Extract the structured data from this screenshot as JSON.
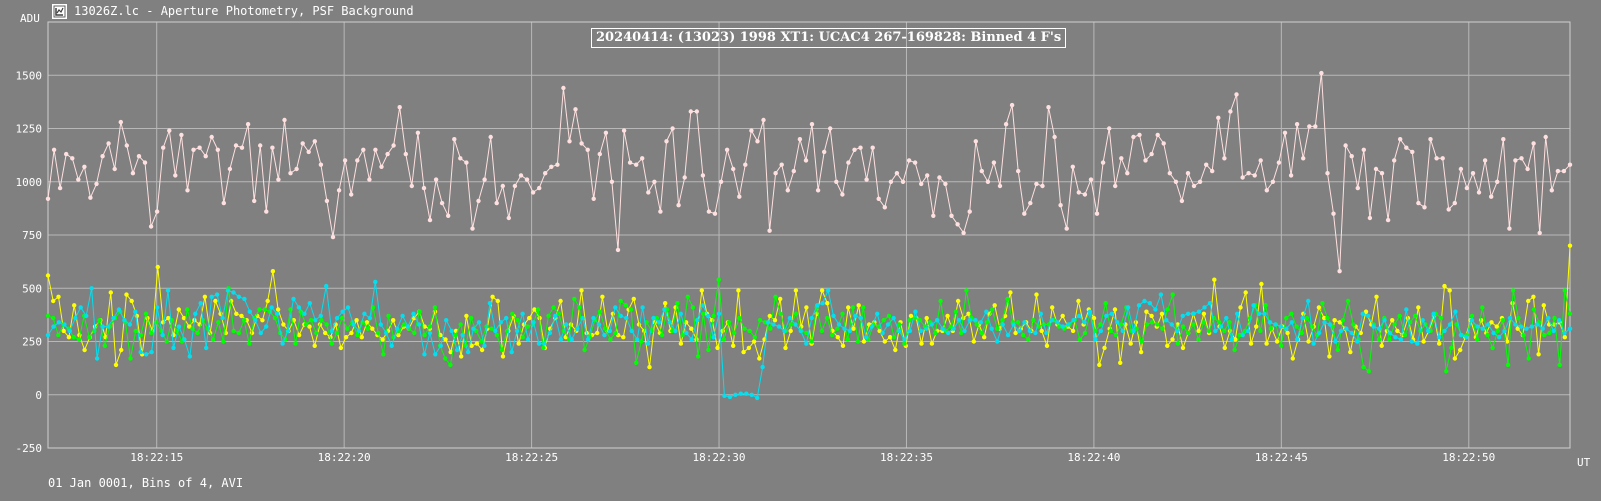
{
  "window": {
    "title": "13026Z.lc - Aperture Photometry, PSF Background",
    "icon": "lightcurve-app-icon"
  },
  "footer": "01 Jan 0001, Bins of 4, AVI",
  "chart_data": {
    "type": "line",
    "title": "20240414: (13023) 1998 XT1: UCAC4 267-169828: Binned 4 F's",
    "ylabel": "ADU",
    "xlabel": "UT",
    "ylim": [
      -250,
      1750
    ],
    "yticks": [
      -250,
      0,
      250,
      500,
      750,
      1000,
      1250,
      1500
    ],
    "xticks": [
      {
        "t": 15,
        "label": "18:22:15"
      },
      {
        "t": 20,
        "label": "18:22:20"
      },
      {
        "t": 25,
        "label": "18:22:25"
      },
      {
        "t": 30,
        "label": "18:22:30"
      },
      {
        "t": 35,
        "label": "18:22:35"
      },
      {
        "t": 40,
        "label": "18:22:40"
      },
      {
        "t": 45,
        "label": "18:22:45"
      },
      {
        "t": 50,
        "label": "18:22:50"
      }
    ],
    "xlim_seconds_after_18_22_00": [
      12.1,
      52.7
    ],
    "grid": true,
    "series": [
      {
        "color": "#ffe0e0",
        "values": [
          920,
          1150,
          970,
          1130,
          1110,
          1010,
          1070,
          925,
          990,
          1120,
          1180,
          1060,
          1280,
          1170,
          1040,
          1120,
          1090,
          790,
          860,
          1160,
          1240,
          1030,
          1220,
          960,
          1150,
          1160,
          1120,
          1210,
          1150,
          900,
          1060,
          1170,
          1160,
          1270,
          910,
          1170,
          860,
          1160,
          1010,
          1290,
          1040,
          1060,
          1180,
          1140,
          1190,
          1080,
          910,
          740,
          960,
          1100,
          940,
          1100,
          1150,
          1010,
          1150,
          1070,
          1130,
          1170,
          1350,
          1130,
          980,
          1230,
          970,
          820,
          1010,
          900,
          840,
          1200,
          1110,
          1090,
          780,
          910,
          1010,
          1210,
          900,
          980,
          830,
          980,
          1030,
          1010,
          950,
          970,
          1040,
          1070,
          1080,
          1440,
          1190,
          1340,
          1180,
          1150,
          920,
          1130,
          1230,
          1000,
          680,
          1240,
          1090,
          1080,
          1110,
          950,
          1000,
          860,
          1190,
          1250,
          890,
          1020,
          1330,
          1330,
          1030,
          860,
          850,
          1000,
          1150,
          1060,
          930,
          1080,
          1240,
          1190,
          1290,
          770,
          1040,
          1080,
          960,
          1050,
          1200,
          1100,
          1270,
          960,
          1140,
          1250,
          1000,
          940,
          1090,
          1150,
          1160,
          1010,
          1160,
          920,
          880,
          1000,
          1040,
          1000,
          1100,
          1090,
          990,
          1030,
          840,
          1020,
          990,
          840,
          800,
          760,
          860,
          1190,
          1050,
          1000,
          1090,
          980,
          1270,
          1360,
          1050,
          850,
          900,
          990,
          980,
          1350,
          1210,
          890,
          780,
          1070,
          950,
          940,
          1010,
          850,
          1090,
          1250,
          980,
          1110,
          1040,
          1210,
          1220,
          1100,
          1130,
          1220,
          1180,
          1040,
          1000,
          910,
          1040,
          980,
          1000,
          1080,
          1050,
          1300,
          1110,
          1330,
          1410,
          1020,
          1040,
          1030,
          1100,
          960,
          1000,
          1090,
          1230,
          1030,
          1270,
          1110,
          1260,
          1260,
          1510,
          1040,
          850,
          580,
          1170,
          1120,
          970,
          1150,
          830,
          1060,
          1040,
          820,
          1100,
          1200,
          1160,
          1140,
          900,
          880,
          1200,
          1110,
          1110,
          870,
          900,
          1060,
          970,
          1040,
          950,
          1100,
          930,
          1000,
          1200,
          780,
          1100,
          1110,
          1060,
          1180,
          760,
          1210,
          960,
          1050,
          1050,
          1080
        ]
      },
      {
        "color": "#ffff00",
        "values": [
          560,
          440,
          460,
          300,
          270,
          420,
          280,
          210,
          270,
          320,
          350,
          270,
          480,
          140,
          210,
          470,
          440,
          370,
          190,
          360,
          300,
          600,
          340,
          360,
          280,
          400,
          360,
          320,
          350,
          330,
          460,
          290,
          440,
          380,
          290,
          440,
          380,
          370,
          350,
          290,
          370,
          350,
          440,
          580,
          400,
          330,
          300,
          350,
          280,
          330,
          320,
          230,
          330,
          290,
          270,
          330,
          220,
          270,
          290,
          350,
          270,
          340,
          310,
          280,
          260,
          300,
          350,
          280,
          320,
          310,
          360,
          390,
          320,
          310,
          390,
          280,
          260,
          200,
          300,
          180,
          370,
          230,
          240,
          210,
          310,
          460,
          440,
          180,
          300,
          370,
          240,
          330,
          360,
          400,
          360,
          220,
          310,
          360,
          440,
          270,
          330,
          300,
          490,
          290,
          280,
          290,
          460,
          300,
          380,
          280,
          270,
          400,
          450,
          330,
          300,
          130,
          340,
          290,
          430,
          300,
          410,
          240,
          340,
          310,
          260,
          490,
          380,
          350,
          220,
          300,
          340,
          230,
          490,
          200,
          220,
          250,
          170,
          260,
          370,
          350,
          450,
          220,
          300,
          490,
          320,
          410,
          240,
          380,
          490,
          430,
          300,
          270,
          230,
          410,
          310,
          420,
          250,
          330,
          340,
          300,
          250,
          270,
          210,
          340,
          230,
          370,
          360,
          240,
          360,
          240,
          300,
          300,
          370,
          300,
          440,
          360,
          380,
          250,
          330,
          270,
          380,
          420,
          310,
          370,
          480,
          290,
          310,
          340,
          300,
          470,
          300,
          230,
          410,
          330,
          370,
          320,
          300,
          440,
          330,
          400,
          360,
          140,
          220,
          310,
          400,
          150,
          330,
          240,
          340,
          200,
          390,
          370,
          320,
          380,
          230,
          260,
          330,
          220,
          290,
          380,
          300,
          380,
          290,
          540,
          320,
          220,
          300,
          260,
          410,
          480,
          240,
          320,
          520,
          240,
          310,
          250,
          320,
          290,
          170,
          260,
          380,
          250,
          320,
          410,
          360,
          180,
          350,
          340,
          310,
          200,
          320,
          290,
          390,
          330,
          460,
          230,
          300,
          350,
          300,
          280,
          360,
          260,
          410,
          250,
          300,
          370,
          240,
          510,
          490,
          170,
          210,
          270,
          350,
          270,
          350,
          290,
          340,
          320,
          360,
          250,
          430,
          310,
          280,
          440,
          460,
          190,
          420,
          330,
          330,
          340,
          270,
          700
        ]
      },
      {
        "color": "#00ff00",
        "values": [
          370,
          360,
          280,
          330,
          310,
          270,
          260,
          370,
          270,
          300,
          350,
          230,
          320,
          360,
          390,
          340,
          170,
          300,
          280,
          380,
          290,
          340,
          300,
          250,
          350,
          300,
          250,
          400,
          310,
          290,
          350,
          310,
          260,
          340,
          250,
          500,
          300,
          290,
          350,
          240,
          360,
          400,
          400,
          390,
          360,
          290,
          260,
          400,
          240,
          390,
          330,
          350,
          290,
          350,
          330,
          240,
          290,
          360,
          310,
          340,
          280,
          340,
          310,
          410,
          290,
          190,
          370,
          270,
          300,
          330,
          310,
          290,
          390,
          280,
          320,
          410,
          230,
          170,
          140,
          280,
          330,
          230,
          360,
          300,
          250,
          320,
          310,
          280,
          210,
          300,
          380,
          350,
          270,
          320,
          330,
          400,
          220,
          370,
          410,
          380,
          300,
          260,
          450,
          410,
          210,
          270,
          350,
          390,
          310,
          260,
          290,
          440,
          420,
          400,
          150,
          250,
          340,
          300,
          360,
          280,
          400,
          300,
          430,
          280,
          460,
          410,
          180,
          380,
          210,
          370,
          540,
          260,
          340,
          290,
          360,
          310,
          300,
          270,
          350,
          340,
          310,
          460,
          380,
          300,
          330,
          380,
          300,
          290,
          250,
          410,
          300,
          360,
          280,
          310,
          380,
          260,
          410,
          250,
          410,
          260,
          330,
          320,
          350,
          370,
          270,
          330,
          240,
          350,
          360,
          350,
          320,
          340,
          290,
          440,
          300,
          320,
          390,
          290,
          490,
          360,
          330,
          290,
          340,
          400,
          310,
          350,
          450,
          340,
          340,
          280,
          260,
          350,
          320,
          330,
          330,
          350,
          320,
          310,
          330,
          350,
          260,
          290,
          380,
          300,
          330,
          430,
          300,
          280,
          330,
          410,
          300,
          310,
          250,
          330,
          340,
          330,
          310,
          400,
          470,
          240,
          320,
          290,
          330,
          260,
          340,
          300,
          360,
          340,
          300,
          340,
          210,
          280,
          300,
          360,
          420,
          300,
          420,
          310,
          330,
          230,
          360,
          380,
          320,
          290,
          360,
          320,
          280,
          430,
          360,
          320,
          210,
          350,
          440,
          330,
          260,
          130,
          110,
          330,
          260,
          360,
          260,
          330,
          370,
          280,
          340,
          370,
          300,
          330,
          300,
          380,
          360,
          110,
          220,
          330,
          280,
          280,
          370,
          260,
          410,
          280,
          220,
          300,
          350,
          140,
          490,
          360,
          280,
          170,
          400,
          340,
          280,
          290,
          360,
          140,
          490,
          380
        ]
      },
      {
        "color": "#00e0f0",
        "values": [
          280,
          320,
          340,
          330,
          300,
          360,
          410,
          370,
          500,
          170,
          320,
          320,
          360,
          400,
          350,
          330,
          390,
          200,
          190,
          200,
          410,
          280,
          490,
          220,
          320,
          260,
          180,
          380,
          430,
          220,
          460,
          470,
          360,
          490,
          480,
          460,
          450,
          390,
          350,
          290,
          320,
          410,
          380,
          240,
          300,
          450,
          410,
          380,
          430,
          350,
          370,
          510,
          300,
          360,
          390,
          410,
          330,
          300,
          380,
          360,
          530,
          330,
          290,
          230,
          310,
          370,
          320,
          380,
          330,
          190,
          290,
          190,
          230,
          350,
          300,
          210,
          280,
          200,
          310,
          340,
          230,
          430,
          300,
          340,
          360,
          200,
          300,
          380,
          260,
          340,
          240,
          240,
          290,
          370,
          260,
          330,
          260,
          310,
          360,
          260,
          360,
          330,
          280,
          300,
          410,
          370,
          360,
          300,
          260,
          410,
          240,
          360,
          340,
          400,
          340,
          300,
          380,
          290,
          260,
          350,
          420,
          370,
          270,
          380,
          -5,
          -10,
          0,
          5,
          5,
          0,
          -15,
          130,
          340,
          330,
          320,
          300,
          360,
          330,
          300,
          240,
          360,
          420,
          430,
          490,
          370,
          330,
          310,
          300,
          370,
          360,
          270,
          320,
          380,
          290,
          330,
          360,
          300,
          260,
          300,
          390,
          300,
          310,
          330,
          350,
          310,
          290,
          310,
          350,
          300,
          350,
          350,
          340,
          390,
          310,
          250,
          330,
          280,
          330,
          300,
          340,
          300,
          290,
          380,
          290,
          350,
          340,
          320,
          330,
          350,
          370,
          340,
          390,
          260,
          300,
          370,
          380,
          340,
          300,
          410,
          300,
          420,
          440,
          430,
          400,
          470,
          350,
          330,
          300,
          370,
          380,
          380,
          390,
          410,
          430,
          300,
          320,
          360,
          260,
          380,
          280,
          300,
          420,
          380,
          380,
          340,
          330,
          320,
          310,
          340,
          260,
          360,
          440,
          240,
          290,
          340,
          330,
          250,
          300,
          310,
          290,
          250,
          380,
          370,
          320,
          310,
          350,
          290,
          270,
          260,
          400,
          250,
          240,
          350,
          300,
          380,
          270,
          300,
          330,
          390,
          280,
          270,
          350,
          320,
          310,
          330,
          290,
          270,
          300,
          360,
          330,
          320,
          310,
          320,
          330,
          310,
          360,
          300,
          350,
          290,
          310
        ]
      }
    ]
  }
}
